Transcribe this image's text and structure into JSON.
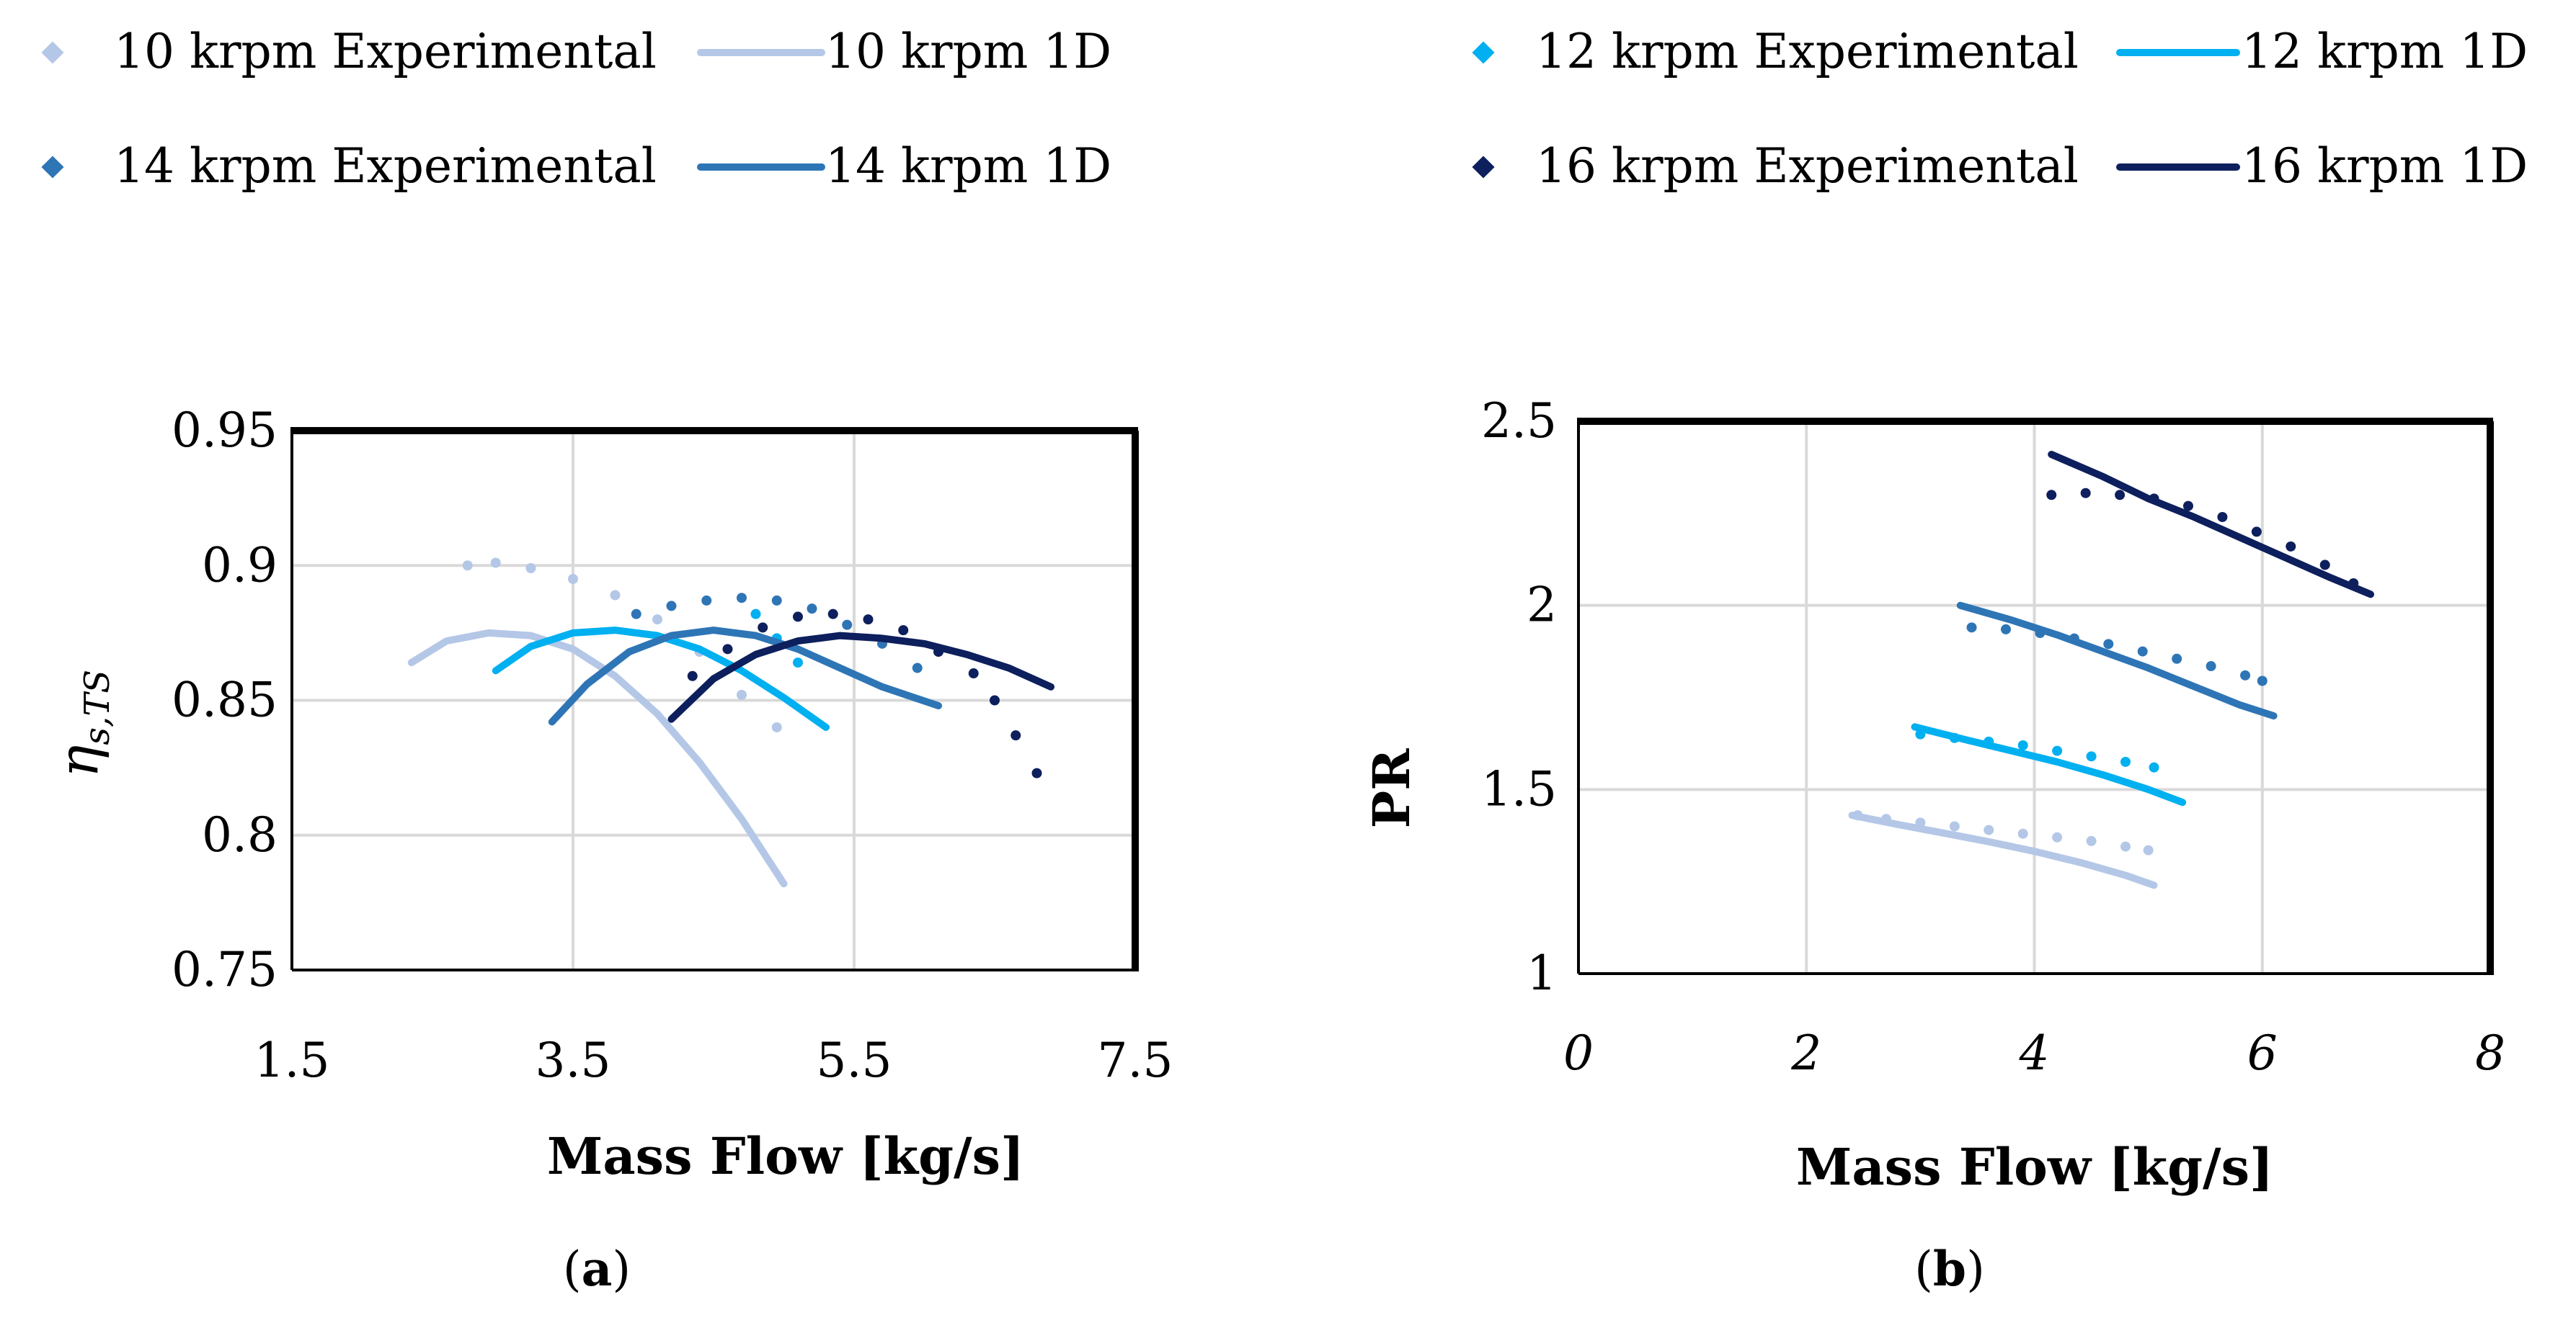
{
  "legend": [
    {
      "label": "10 krpm Experimental",
      "color": "#b4c7e7"
    },
    {
      "label": "10 krpm 1D",
      "color": "#b4c7e7"
    },
    {
      "label": "12 krpm Experimental",
      "color": "#00b0f0"
    },
    {
      "label": "12 krpm 1D",
      "color": "#00b0f0"
    },
    {
      "label": "14 krpm Experimental",
      "color": "#2e75b6"
    },
    {
      "label": "14 krpm 1D",
      "color": "#2e75b6"
    },
    {
      "label": "16 krpm Experimental",
      "color": "#0d1f5c"
    },
    {
      "label": "16 krpm 1D",
      "color": "#0d1f5c"
    }
  ],
  "chart_data": [
    {
      "type": "line",
      "id": "a",
      "caption": {
        "open": "(",
        "letter": "a",
        "close": ")"
      },
      "xlabel": "Mass Flow [kg/s]",
      "ylabel": {
        "main": "η",
        "sub": "s,TS"
      },
      "xlim": [
        1.5,
        7.5
      ],
      "ylim": [
        0.75,
        0.95
      ],
      "xticks": [
        "1.5",
        "3.5",
        "5.5",
        "7.5"
      ],
      "yticks": [
        "0.75",
        "0.8",
        "0.85",
        "0.9",
        "0.95"
      ],
      "grid": true,
      "series": [
        {
          "name": "10 krpm Experimental",
          "style": "dotted",
          "color": "#b4c7e7",
          "x": [
            2.75,
            2.95,
            3.2,
            3.5,
            3.8,
            4.1,
            4.4,
            4.7,
            4.95
          ],
          "y": [
            0.9,
            0.901,
            0.899,
            0.895,
            0.889,
            0.88,
            0.868,
            0.852,
            0.84
          ]
        },
        {
          "name": "10 krpm 1D",
          "style": "solid",
          "color": "#b4c7e7",
          "x": [
            2.35,
            2.6,
            2.9,
            3.2,
            3.5,
            3.8,
            4.1,
            4.4,
            4.7,
            5.0
          ],
          "y": [
            0.864,
            0.872,
            0.875,
            0.874,
            0.869,
            0.859,
            0.845,
            0.827,
            0.806,
            0.782
          ]
        },
        {
          "name": "12 krpm Experimental",
          "style": "dotted",
          "color": "#00b0f0",
          "x": [
            4.8,
            4.95,
            5.1
          ],
          "y": [
            0.882,
            0.873,
            0.864
          ]
        },
        {
          "name": "12 krpm 1D",
          "style": "solid",
          "color": "#00b0f0",
          "x": [
            2.95,
            3.2,
            3.5,
            3.8,
            4.1,
            4.4,
            4.7,
            5.0,
            5.3
          ],
          "y": [
            0.861,
            0.87,
            0.875,
            0.876,
            0.874,
            0.869,
            0.861,
            0.851,
            0.84
          ]
        },
        {
          "name": "14 krpm Experimental",
          "style": "dotted",
          "color": "#2e75b6",
          "x": [
            3.95,
            4.2,
            4.45,
            4.7,
            4.95,
            5.2,
            5.45,
            5.7,
            5.95
          ],
          "y": [
            0.882,
            0.885,
            0.887,
            0.888,
            0.887,
            0.884,
            0.878,
            0.871,
            0.862
          ]
        },
        {
          "name": "14 krpm 1D",
          "style": "solid",
          "color": "#2e75b6",
          "x": [
            3.35,
            3.6,
            3.9,
            4.2,
            4.5,
            4.8,
            5.1,
            5.4,
            5.7,
            6.1
          ],
          "y": [
            0.842,
            0.856,
            0.868,
            0.874,
            0.876,
            0.874,
            0.869,
            0.862,
            0.855,
            0.848
          ]
        },
        {
          "name": "16 krpm Experimental",
          "style": "dotted",
          "color": "#0d1f5c",
          "x": [
            4.35,
            4.6,
            4.85,
            5.1,
            5.35,
            5.6,
            5.85,
            6.1,
            6.35,
            6.5,
            6.65,
            6.8
          ],
          "y": [
            0.859,
            0.869,
            0.877,
            0.881,
            0.882,
            0.88,
            0.876,
            0.868,
            0.86,
            0.85,
            0.837,
            0.823
          ]
        },
        {
          "name": "16 krpm 1D",
          "style": "solid",
          "color": "#0d1f5c",
          "x": [
            4.2,
            4.5,
            4.8,
            5.1,
            5.4,
            5.7,
            6.0,
            6.3,
            6.6,
            6.9
          ],
          "y": [
            0.843,
            0.858,
            0.867,
            0.872,
            0.874,
            0.873,
            0.871,
            0.867,
            0.862,
            0.855
          ]
        }
      ]
    },
    {
      "type": "line",
      "id": "b",
      "caption": {
        "open": "(",
        "letter": "b",
        "close": ")"
      },
      "xlabel": "Mass Flow [kg/s]",
      "ylabel": {
        "main": "PR",
        "sub": ""
      },
      "xlim": [
        0,
        8
      ],
      "ylim": [
        1,
        2.5
      ],
      "xticks": [
        "0",
        "2",
        "4",
        "6",
        "8"
      ],
      "yticks": [
        "1",
        "1.5",
        "2",
        "2.5"
      ],
      "grid": true,
      "series": [
        {
          "name": "10 krpm Experimental",
          "style": "dotted",
          "color": "#b4c7e7",
          "x": [
            2.45,
            2.7,
            3.0,
            3.3,
            3.6,
            3.9,
            4.2,
            4.5,
            4.8,
            5.0
          ],
          "y": [
            1.43,
            1.42,
            1.41,
            1.4,
            1.39,
            1.38,
            1.37,
            1.36,
            1.345,
            1.335
          ]
        },
        {
          "name": "10 krpm 1D",
          "style": "solid",
          "color": "#b4c7e7",
          "x": [
            2.4,
            2.8,
            3.2,
            3.6,
            4.0,
            4.4,
            4.8,
            5.05
          ],
          "y": [
            1.43,
            1.405,
            1.382,
            1.358,
            1.332,
            1.302,
            1.267,
            1.24
          ]
        },
        {
          "name": "12 krpm Experimental",
          "style": "dotted",
          "color": "#00b0f0",
          "x": [
            3.0,
            3.3,
            3.6,
            3.9,
            4.2,
            4.5,
            4.8,
            5.05
          ],
          "y": [
            1.65,
            1.64,
            1.63,
            1.62,
            1.605,
            1.59,
            1.575,
            1.56
          ]
        },
        {
          "name": "12 krpm 1D",
          "style": "solid",
          "color": "#00b0f0",
          "x": [
            2.95,
            3.4,
            3.8,
            4.2,
            4.6,
            5.0,
            5.3
          ],
          "y": [
            1.67,
            1.635,
            1.605,
            1.575,
            1.54,
            1.5,
            1.465
          ]
        },
        {
          "name": "14 krpm Experimental",
          "style": "dotted",
          "color": "#2e75b6",
          "x": [
            3.45,
            3.75,
            4.05,
            4.35,
            4.65,
            4.95,
            5.25,
            5.55,
            5.85,
            6.0
          ],
          "y": [
            1.94,
            1.935,
            1.925,
            1.91,
            1.895,
            1.875,
            1.855,
            1.835,
            1.81,
            1.795
          ]
        },
        {
          "name": "14 krpm 1D",
          "style": "solid",
          "color": "#2e75b6",
          "x": [
            3.35,
            3.8,
            4.2,
            4.6,
            5.0,
            5.4,
            5.8,
            6.1
          ],
          "y": [
            2.0,
            1.96,
            1.92,
            1.875,
            1.83,
            1.78,
            1.73,
            1.7
          ]
        },
        {
          "name": "16 krpm Experimental",
          "style": "dotted",
          "color": "#0d1f5c",
          "x": [
            4.15,
            4.45,
            4.75,
            5.05,
            5.35,
            5.65,
            5.95,
            6.25,
            6.55,
            6.8
          ],
          "y": [
            2.3,
            2.305,
            2.3,
            2.29,
            2.27,
            2.24,
            2.2,
            2.16,
            2.11,
            2.06
          ]
        },
        {
          "name": "16 krpm 1D",
          "style": "solid",
          "color": "#0d1f5c",
          "x": [
            4.15,
            4.6,
            5.0,
            5.4,
            5.8,
            6.2,
            6.6,
            6.95
          ],
          "y": [
            2.41,
            2.35,
            2.29,
            2.24,
            2.185,
            2.13,
            2.075,
            2.03
          ]
        }
      ]
    }
  ]
}
